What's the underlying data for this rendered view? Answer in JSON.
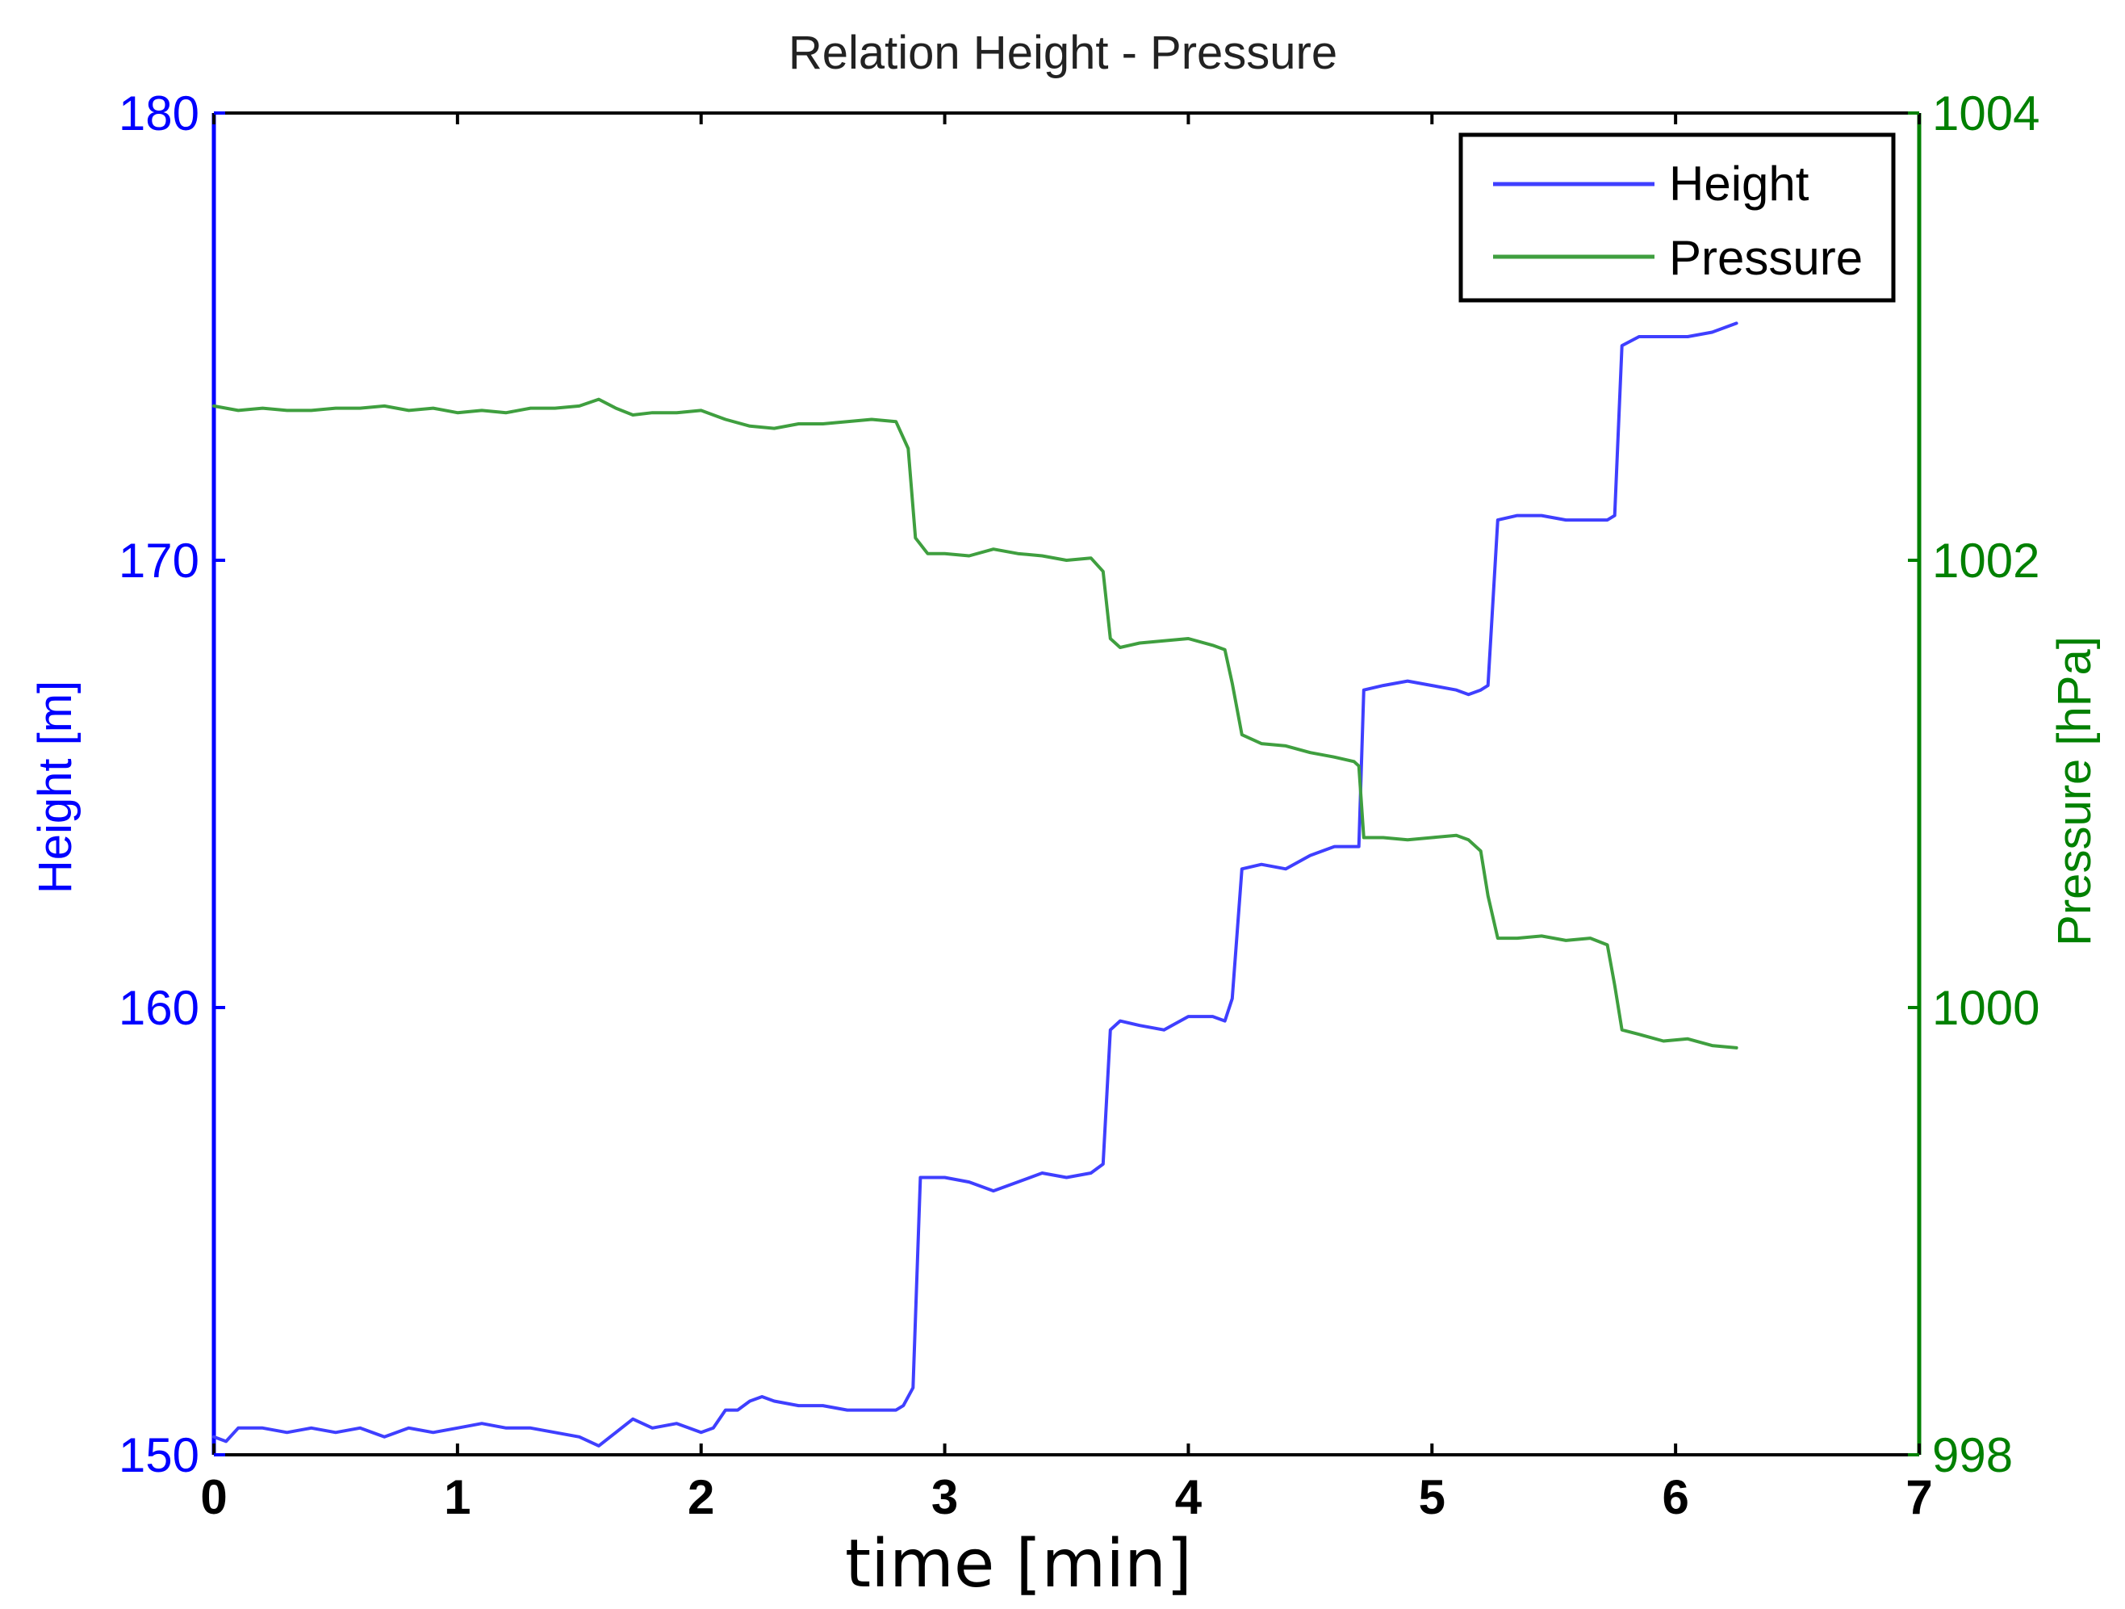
{
  "chart_data": {
    "type": "line",
    "title": "Relation Height - Pressure",
    "xlabel": "time [min]",
    "xlim": [
      0,
      7
    ],
    "xticks": [
      0,
      1,
      2,
      3,
      4,
      5,
      6,
      7
    ],
    "left_axis": {
      "label": "Height [m]",
      "ylim": [
        150,
        180
      ],
      "ticks": [
        150,
        160,
        170,
        180
      ],
      "color": "#0000ff"
    },
    "right_axis": {
      "label": "Pressure [hPa]",
      "ylim": [
        998,
        1004
      ],
      "ticks": [
        998,
        1000,
        1002,
        1004
      ],
      "color": "#008000"
    },
    "legend": {
      "position": "top-right",
      "entries": [
        "Height",
        "Pressure"
      ]
    },
    "series": [
      {
        "name": "Height",
        "axis": "left",
        "color": "#3f3fff",
        "x": [
          0.0,
          0.05,
          0.1,
          0.2,
          0.3,
          0.4,
          0.5,
          0.6,
          0.7,
          0.8,
          0.9,
          1.0,
          1.1,
          1.2,
          1.3,
          1.4,
          1.5,
          1.58,
          1.65,
          1.72,
          1.8,
          1.9,
          2.0,
          2.05,
          2.1,
          2.15,
          2.2,
          2.25,
          2.3,
          2.4,
          2.5,
          2.6,
          2.7,
          2.8,
          2.83,
          2.87,
          2.9,
          3.0,
          3.1,
          3.2,
          3.3,
          3.4,
          3.5,
          3.6,
          3.65,
          3.68,
          3.72,
          3.8,
          3.9,
          4.0,
          4.1,
          4.15,
          4.18,
          4.22,
          4.3,
          4.4,
          4.5,
          4.6,
          4.68,
          4.7,
          4.72,
          4.8,
          4.9,
          5.0,
          5.1,
          5.15,
          5.2,
          5.23,
          5.27,
          5.35,
          5.45,
          5.55,
          5.65,
          5.72,
          5.75,
          5.78,
          5.85,
          5.95,
          6.05,
          6.15,
          6.25
        ],
        "y": [
          150.4,
          150.3,
          150.6,
          150.6,
          150.5,
          150.6,
          150.5,
          150.6,
          150.4,
          150.6,
          150.5,
          150.6,
          150.7,
          150.6,
          150.6,
          150.5,
          150.4,
          150.2,
          150.5,
          150.8,
          150.6,
          150.7,
          150.5,
          150.6,
          151.0,
          151.0,
          151.2,
          151.3,
          151.2,
          151.1,
          151.1,
          151.0,
          151.0,
          151.0,
          151.1,
          151.5,
          156.2,
          156.2,
          156.1,
          155.9,
          156.1,
          156.3,
          156.2,
          156.3,
          156.5,
          159.5,
          159.7,
          159.6,
          159.5,
          159.8,
          159.8,
          159.7,
          160.2,
          163.1,
          163.2,
          163.1,
          163.4,
          163.6,
          163.6,
          163.6,
          167.1,
          167.2,
          167.3,
          167.2,
          167.1,
          167.0,
          167.1,
          167.2,
          170.9,
          171.0,
          171.0,
          170.9,
          170.9,
          170.9,
          171.0,
          174.8,
          175.0,
          175.0,
          175.0,
          175.1,
          175.3
        ]
      },
      {
        "name": "Pressure",
        "axis": "right",
        "color": "#3f9f3f",
        "x": [
          0.0,
          0.1,
          0.2,
          0.3,
          0.4,
          0.5,
          0.6,
          0.7,
          0.8,
          0.9,
          1.0,
          1.1,
          1.2,
          1.3,
          1.4,
          1.5,
          1.58,
          1.65,
          1.72,
          1.8,
          1.9,
          2.0,
          2.1,
          2.2,
          2.3,
          2.4,
          2.5,
          2.6,
          2.7,
          2.8,
          2.85,
          2.88,
          2.93,
          3.0,
          3.1,
          3.2,
          3.3,
          3.4,
          3.5,
          3.6,
          3.65,
          3.68,
          3.72,
          3.8,
          3.9,
          4.0,
          4.1,
          4.15,
          4.18,
          4.22,
          4.3,
          4.4,
          4.5,
          4.6,
          4.68,
          4.7,
          4.72,
          4.8,
          4.9,
          5.0,
          5.1,
          5.15,
          5.2,
          5.23,
          5.27,
          5.35,
          5.45,
          5.55,
          5.65,
          5.72,
          5.75,
          5.78,
          5.85,
          5.95,
          6.05,
          6.15,
          6.25
        ],
        "y": [
          1002.69,
          1002.67,
          1002.68,
          1002.67,
          1002.67,
          1002.68,
          1002.68,
          1002.69,
          1002.67,
          1002.68,
          1002.66,
          1002.67,
          1002.66,
          1002.68,
          1002.68,
          1002.69,
          1002.72,
          1002.68,
          1002.65,
          1002.66,
          1002.66,
          1002.67,
          1002.63,
          1002.6,
          1002.59,
          1002.61,
          1002.61,
          1002.62,
          1002.63,
          1002.62,
          1002.5,
          1002.1,
          1002.03,
          1002.03,
          1002.02,
          1002.05,
          1002.03,
          1002.02,
          1002.0,
          1002.01,
          1001.95,
          1001.65,
          1001.61,
          1001.63,
          1001.64,
          1001.65,
          1001.62,
          1001.6,
          1001.45,
          1001.22,
          1001.18,
          1001.17,
          1001.14,
          1001.12,
          1001.1,
          1001.08,
          1000.76,
          1000.76,
          1000.75,
          1000.76,
          1000.77,
          1000.75,
          1000.7,
          1000.5,
          1000.31,
          1000.31,
          1000.32,
          1000.3,
          1000.31,
          1000.28,
          1000.1,
          999.9,
          999.88,
          999.85,
          999.86,
          999.83,
          999.82
        ]
      }
    ]
  }
}
